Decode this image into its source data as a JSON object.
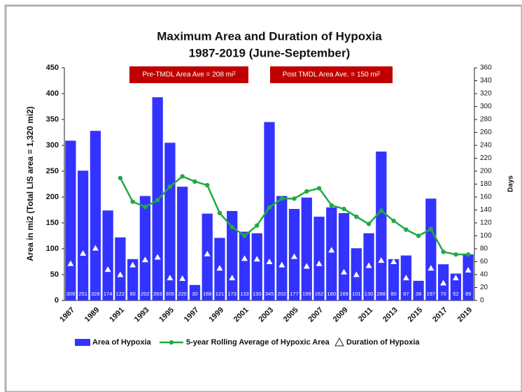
{
  "chart_data": {
    "type": "bar",
    "title": "Maximum Area and Duration of Hypoxia",
    "subtitle": "1987-2019 (June-September)",
    "y_label": "Area in mi2 (Total LIS area = 1,320 mi2)",
    "y2_label": "Days",
    "annotations": [
      "Pre-TMDL Area Ave = 208 mi²",
      "Post TMDL Area Ave. = 150 mi²"
    ],
    "annotation_color": "#c00000",
    "categories": [
      "1987",
      null,
      "1989",
      null,
      "1991",
      null,
      "1993",
      null,
      "1995",
      null,
      "1997",
      null,
      "1999",
      null,
      "2001",
      null,
      "2003",
      null,
      "2005",
      null,
      "2007",
      null,
      "2009",
      null,
      "2011",
      null,
      "2013",
      null,
      "2015",
      null,
      "2017",
      null,
      "2019"
    ],
    "series": [
      {
        "name": "Area of Hypoxia",
        "type": "bar",
        "color": "#3333ff",
        "show_values": true,
        "values": [
          309,
          251,
          328,
          174,
          122,
          80,
          202,
          393,
          305,
          220,
          30,
          168,
          121,
          173,
          133,
          130,
          345,
          202,
          177,
          199,
          162,
          180,
          169,
          101,
          130,
          288,
          80,
          87,
          38,
          197,
          70,
          52,
          89
        ]
      },
      {
        "name": "5-year Rolling Average of Hypoxic Area",
        "type": "line",
        "color": "#22a845",
        "values": [
          null,
          null,
          null,
          null,
          236.8,
          191,
          181,
          194,
          220,
          240,
          230,
          223,
          169,
          142,
          125,
          145,
          180,
          197,
          197,
          211,
          217,
          184,
          177,
          162,
          148,
          174,
          154,
          137,
          125,
          138,
          94,
          89,
          89
        ]
      },
      {
        "name": "Duration of Hypoxia",
        "type": "triangle",
        "axis": "y2",
        "color": "#ffffff",
        "values": [
          57,
          73,
          81,
          48,
          40,
          55,
          63,
          67,
          35,
          34,
          null,
          72,
          50,
          35,
          65,
          64,
          60,
          55,
          68,
          53,
          57,
          78,
          44,
          40,
          54,
          62,
          60,
          35,
          null,
          50,
          27,
          35,
          47
        ]
      }
    ],
    "ylim": [
      0,
      450
    ],
    "yticks": [
      0,
      50,
      100,
      150,
      200,
      250,
      300,
      350,
      400,
      450
    ],
    "y2lim": [
      0,
      360
    ],
    "y2ticks": [
      0,
      20,
      40,
      60,
      80,
      100,
      120,
      140,
      160,
      180,
      200,
      220,
      240,
      260,
      280,
      300,
      320,
      340,
      360
    ],
    "grid": false
  }
}
